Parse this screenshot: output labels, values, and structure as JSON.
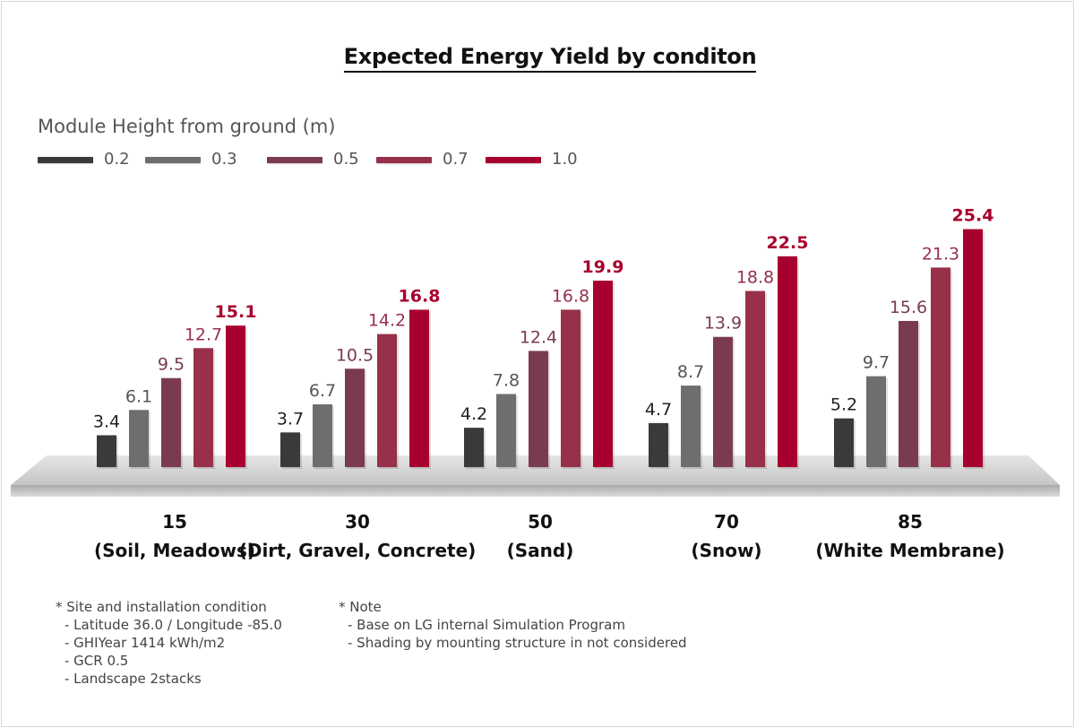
{
  "chart_data": {
    "type": "bar",
    "title": "Expected Energy Yield by conditon",
    "legend_title": "Module Height from ground (m)",
    "legend_position": "top-left",
    "grid": false,
    "ylim": [
      0,
      26
    ],
    "categories": [
      "15",
      "30",
      "50",
      "70",
      "85"
    ],
    "category_sublabels": [
      "(Soil, Meadows)",
      "(Dirt, Gravel, Concrete)",
      "(Sand)",
      "(Snow)",
      "(White Membrane)"
    ],
    "series": [
      {
        "name": "0.2",
        "color": "#3a3a3a",
        "label_color": "#222222",
        "values": [
          3.4,
          3.7,
          4.2,
          4.7,
          5.2
        ]
      },
      {
        "name": "0.3",
        "color": "#6e6e6e",
        "label_color": "#555555",
        "values": [
          6.1,
          6.7,
          7.8,
          8.7,
          9.7
        ]
      },
      {
        "name": "0.5",
        "color": "#7a3b52",
        "label_color": "#7a3b52",
        "values": [
          9.5,
          10.5,
          12.4,
          13.9,
          15.6
        ]
      },
      {
        "name": "0.7",
        "color": "#98304a",
        "label_color": "#98304a",
        "values": [
          12.7,
          14.2,
          16.8,
          18.8,
          21.3
        ]
      },
      {
        "name": "1.0",
        "color": "#a8002e",
        "label_color": "#a8002e",
        "values": [
          15.1,
          16.8,
          19.9,
          22.5,
          25.4
        ]
      }
    ]
  },
  "notes": {
    "left": {
      "heading": "*   Site and installation condition",
      "lines": [
        "- Latitude 36.0 / Longitude -85.0",
        "- GHIYear 1414 kWh/m2",
        "- GCR 0.5",
        "- Landscape 2stacks"
      ]
    },
    "right": {
      "heading": "*   Note",
      "lines": [
        "- Base on LG internal Simulation Program",
        "- Shading by mounting structure in not considered"
      ]
    }
  }
}
